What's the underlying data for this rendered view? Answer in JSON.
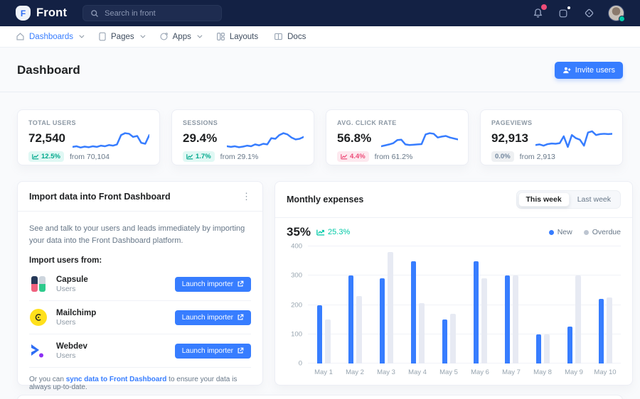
{
  "colors": {
    "navbar_bg": "#132144",
    "primary": "#377dff",
    "success": "#00c9a7",
    "danger": "#ed4c78",
    "new_bar": "#377dff",
    "overdue_bar": "#e7eaf3",
    "overdue_legend": "#bdc5d1"
  },
  "navbar": {
    "brand": "Front",
    "brand_initial": "F",
    "search_placeholder": "Search in front"
  },
  "subnav": {
    "items": [
      {
        "label": "Dashboards",
        "icon": "home-icon",
        "chevron": true,
        "active": true
      },
      {
        "label": "Pages",
        "icon": "page-icon",
        "chevron": true,
        "active": false
      },
      {
        "label": "Apps",
        "icon": "apps-icon",
        "chevron": true,
        "active": false
      },
      {
        "label": "Layouts",
        "icon": "layouts-icon",
        "chevron": false,
        "active": false
      },
      {
        "label": "Docs",
        "icon": "docs-icon",
        "chevron": false,
        "active": false
      }
    ]
  },
  "header": {
    "title": "Dashboard",
    "invite_label": "Invite users"
  },
  "stats": [
    {
      "label": "TOTAL USERS",
      "value": "72,540",
      "badge": "12.5%",
      "badge_type": "success",
      "from": "from 70,104",
      "sparkline": [
        68,
        66,
        70,
        67,
        69,
        66,
        68,
        64,
        66,
        62,
        64,
        60,
        30,
        24,
        26,
        36,
        33,
        55,
        58,
        30
      ]
    },
    {
      "label": "SESSIONS",
      "value": "29.4%",
      "badge": "1.7%",
      "badge_type": "success",
      "from": "from 29.1%",
      "sparkline": [
        66,
        68,
        66,
        69,
        67,
        64,
        66,
        60,
        63,
        58,
        60,
        40,
        42,
        30,
        24,
        28,
        38,
        44,
        42,
        36
      ]
    },
    {
      "label": "AVG. CLICK RATE",
      "value": "56.8%",
      "badge": "4.4%",
      "badge_type": "danger",
      "from": "from 61.2%",
      "sparkline": [
        66,
        63,
        60,
        56,
        46,
        45,
        60,
        62,
        61,
        60,
        59,
        28,
        24,
        26,
        38,
        35,
        33,
        38,
        41,
        44
      ]
    },
    {
      "label": "PAGEVIEWS",
      "value": "92,913",
      "badge": "0.0%",
      "badge_type": "neutral",
      "from": "from 2,913",
      "sparkline": [
        62,
        60,
        64,
        59,
        57,
        58,
        56,
        34,
        68,
        30,
        40,
        45,
        64,
        22,
        18,
        30,
        27,
        26,
        27,
        26
      ]
    }
  ],
  "import_card": {
    "title": "Import data into Front Dashboard",
    "description": "See and talk to your users and leads immediately by importing your data into the Front Dashboard platform.",
    "subtitle": "Import users from:",
    "rows": [
      {
        "name": "Capsule",
        "type": "Users",
        "button": "Launch importer",
        "logo": "capsule-logo"
      },
      {
        "name": "Mailchimp",
        "type": "Users",
        "button": "Launch importer",
        "logo": "mailchimp-logo"
      },
      {
        "name": "Webdev",
        "type": "Users",
        "button": "Launch importer",
        "logo": "webdev-logo"
      }
    ],
    "footer_prefix": "Or you can ",
    "footer_link": "sync data to Front Dashboard",
    "footer_suffix": " to ensure your data is always up-to-date."
  },
  "expenses_card": {
    "title": "Monthly expenses",
    "toggle": [
      "This week",
      "Last week"
    ],
    "toggle_active": 0,
    "percent": "35%",
    "delta": "25.3%",
    "legend": [
      {
        "label": "New",
        "color": "#377dff"
      },
      {
        "label": "Overdue",
        "color": "#bdc5d1"
      }
    ]
  },
  "chart_data": {
    "type": "bar",
    "title": "Monthly expenses",
    "categories": [
      "May 1",
      "May 2",
      "May 3",
      "May 4",
      "May 5",
      "May 6",
      "May 7",
      "May 8",
      "May 9",
      "May 10"
    ],
    "series": [
      {
        "name": "New",
        "color": "#377dff",
        "values": [
          200,
          300,
          290,
          350,
          150,
          350,
          300,
          100,
          125,
          220
        ]
      },
      {
        "name": "Overdue",
        "color": "#e7eaf3",
        "values": [
          150,
          230,
          380,
          205,
          170,
          290,
          300,
          100,
          300,
          225
        ]
      }
    ],
    "ylim": [
      0,
      400
    ],
    "yticks": [
      0,
      100,
      200,
      300,
      400
    ],
    "grid": true,
    "legend_position": "top-right"
  }
}
